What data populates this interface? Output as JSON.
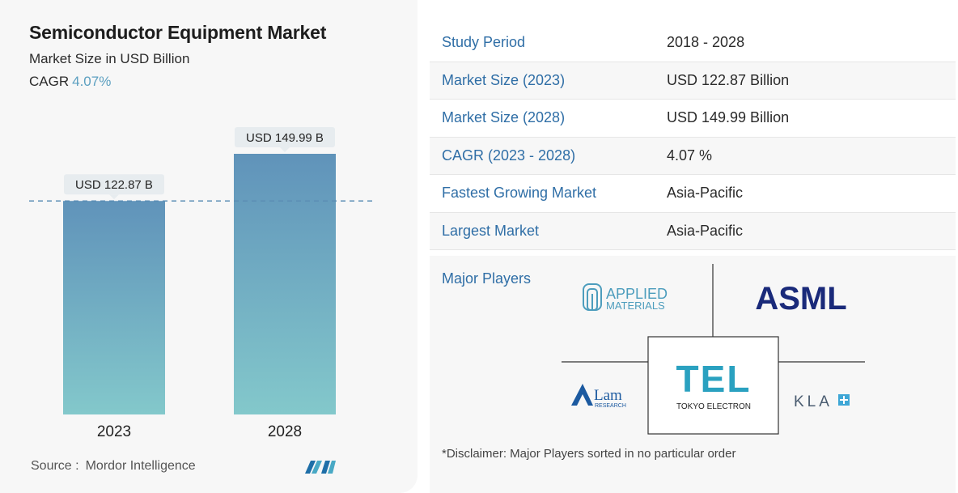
{
  "header": {
    "title": "Semiconductor Equipment Market",
    "subtitle": "Market Size in USD Billion",
    "cagr_label": "CAGR",
    "cagr_value": "4.07%"
  },
  "chart_data": {
    "type": "bar",
    "categories": [
      "2023",
      "2028"
    ],
    "values": [
      122.87,
      149.99
    ],
    "data_labels": [
      "USD 122.87 B",
      "USD 149.99 B"
    ],
    "xlabel": "",
    "ylabel": "",
    "title": "",
    "grid": false,
    "colors": {
      "bar_top": "#6093ba",
      "bar_bottom": "#83c8cb",
      "label_bg": "#e7ecef",
      "dashed_line": "#5b8db4"
    }
  },
  "source": {
    "label": "Source :",
    "value": "Mordor Intelligence"
  },
  "stats": [
    {
      "key": "Study Period",
      "value": "2018 - 2028"
    },
    {
      "key": "Market Size (2023)",
      "value": "USD 122.87 Billion"
    },
    {
      "key": "Market Size (2028)",
      "value": "USD 149.99 Billion"
    },
    {
      "key": "CAGR (2023 - 2028)",
      "value": "4.07 %"
    },
    {
      "key": "Fastest Growing Market",
      "value": "Asia-Pacific"
    },
    {
      "key": "Largest Market",
      "value": "Asia-Pacific"
    }
  ],
  "players": {
    "label": "Major Players",
    "logos": [
      {
        "name": "applied-materials",
        "line1": "APPLIED",
        "line2": "MATERIALS"
      },
      {
        "name": "asml",
        "text": "ASML"
      },
      {
        "name": "lam-research",
        "line1": "Lam",
        "line2": "RESEARCH"
      },
      {
        "name": "tel",
        "text": "TEL",
        "sub": "TOKYO ELECTRON"
      },
      {
        "name": "kla",
        "text": "KLA"
      }
    ]
  },
  "disclaimer": "*Disclaimer: Major Players sorted in no particular order",
  "colors": {
    "accent": "#2f6ea6",
    "cagr": "#5b9fc0",
    "panel_bg": "#f7f7f7"
  }
}
